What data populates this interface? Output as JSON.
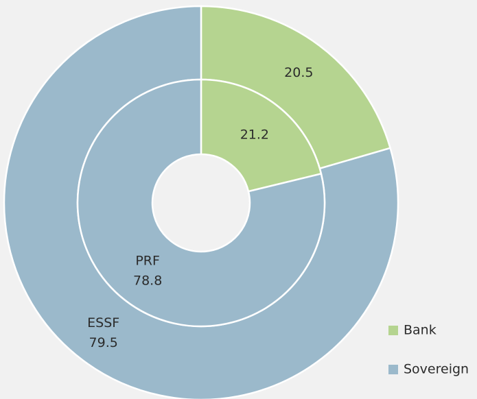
{
  "chart_data": {
    "type": "donut",
    "categories": [
      "Bank",
      "Sovereign"
    ],
    "colors": [
      "#b5d490",
      "#9bb9cb"
    ],
    "series": [
      {
        "name": "ESSF",
        "values": [
          20.5,
          79.5
        ]
      },
      {
        "name": "PRF",
        "values": [
          21.2,
          78.8
        ]
      }
    ]
  }
}
